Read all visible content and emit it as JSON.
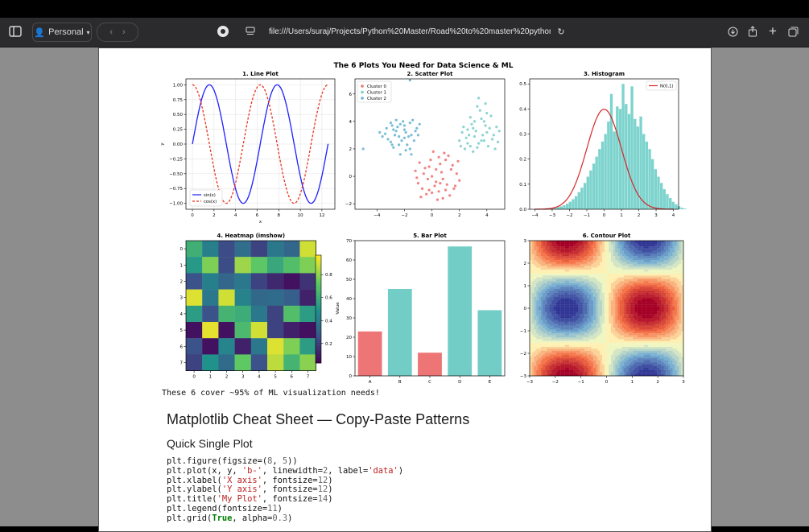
{
  "browser": {
    "profile_label": "Personal",
    "url": "file:///Users/suraj/Projects/Python%20Master/Road%20to%20master%20python/Py"
  },
  "figure": {
    "suptitle": "The 6 Plots You Need for Data Science & ML",
    "caption": "These 6 cover ~95% of ML visualization needs!"
  },
  "chart_data": [
    {
      "type": "line",
      "title": "1. Line Plot",
      "xlabel": "x",
      "ylabel": "y",
      "xlim": [
        -0.6,
        13.2
      ],
      "ylim": [
        -1.1,
        1.1
      ],
      "xticks": [
        "0",
        "2",
        "4",
        "6",
        "8",
        "10",
        "12"
      ],
      "yticks": [
        "1.00",
        "0.75",
        "0.50",
        "0.25",
        "0.00",
        "−0.25",
        "−0.50",
        "−0.75",
        "−1.00"
      ],
      "grid": true,
      "legend_position": "lower-left",
      "series": [
        {
          "name": "sin(x)",
          "function": "sin",
          "x_range": [
            0,
            12.57
          ],
          "color": "#1f1fff",
          "style": "solid"
        },
        {
          "name": "cos(x)",
          "function": "cos",
          "x_range": [
            0,
            12.57
          ],
          "color": "#e8341c",
          "style": "dashed"
        }
      ]
    },
    {
      "type": "scatter",
      "title": "2. Scatter Plot",
      "xlim": [
        -5.6,
        5.3
      ],
      "ylim": [
        -2.4,
        7.1
      ],
      "xticks": [
        "−4",
        "−2",
        "0",
        "2",
        "4"
      ],
      "yticks": [
        "6",
        "4",
        "2",
        "0",
        "−2"
      ],
      "legend_position": "top-left",
      "series": [
        {
          "name": "Cluster 0",
          "color": "#ee7775",
          "points": [
            [
              0.3,
              -0.4
            ],
            [
              -0.6,
              0.2
            ],
            [
              1.0,
              1.2
            ],
            [
              0.5,
              -1.1
            ],
            [
              -0.2,
              0.7
            ],
            [
              1.4,
              0.5
            ],
            [
              -1.0,
              -0.5
            ],
            [
              0.8,
              -0.2
            ],
            [
              0.1,
              1.8
            ],
            [
              1.6,
              -0.9
            ],
            [
              -0.4,
              -1.3
            ],
            [
              0.6,
              0.9
            ],
            [
              -1.2,
              0.4
            ],
            [
              1.1,
              -0.6
            ],
            [
              0.0,
              0.0
            ],
            [
              0.9,
              1.7
            ],
            [
              -0.7,
              -0.9
            ],
            [
              1.8,
              0.2
            ],
            [
              0.4,
              -1.7
            ],
            [
              -0.1,
              1.2
            ],
            [
              1.3,
              -1.4
            ],
            [
              0.7,
              0.3
            ],
            [
              -0.9,
              1.0
            ],
            [
              0.2,
              -0.7
            ],
            [
              1.9,
              1.1
            ],
            [
              -0.3,
              -0.2
            ],
            [
              1.0,
              -1.0
            ],
            [
              0.5,
              1.4
            ],
            [
              -0.8,
              -1.5
            ],
            [
              1.5,
              0.8
            ],
            [
              0.0,
              -1.2
            ],
            [
              2.0,
              -0.3
            ],
            [
              0.3,
              0.5
            ],
            [
              -1.1,
              -0.1
            ],
            [
              1.2,
              1.5
            ],
            [
              -0.5,
              0.6
            ],
            [
              0.8,
              -1.6
            ],
            [
              1.7,
              -0.7
            ],
            [
              -0.2,
              -1.0
            ],
            [
              0.6,
              -0.5
            ]
          ]
        },
        {
          "name": "Cluster 1",
          "color": "#7ecfca",
          "points": [
            [
              2.5,
              2.8
            ],
            [
              3.0,
              3.5
            ],
            [
              3.6,
              2.6
            ],
            [
              4.0,
              3.2
            ],
            [
              2.8,
              4.3
            ],
            [
              3.3,
              2.1
            ],
            [
              4.4,
              2.7
            ],
            [
              2.2,
              3.2
            ],
            [
              3.8,
              4.0
            ],
            [
              3.1,
              2.9
            ],
            [
              4.7,
              3.6
            ],
            [
              2.6,
              2.4
            ],
            [
              3.5,
              4.8
            ],
            [
              4.1,
              2.2
            ],
            [
              2.9,
              3.8
            ],
            [
              3.7,
              3.0
            ],
            [
              4.3,
              4.4
            ],
            [
              2.4,
              2.0
            ],
            [
              3.2,
              3.3
            ],
            [
              4.8,
              2.5
            ],
            [
              2.0,
              2.6
            ],
            [
              3.9,
              3.7
            ],
            [
              3.4,
              2.4
            ],
            [
              4.5,
              3.0
            ],
            [
              2.7,
              3.0
            ],
            [
              3.0,
              1.8
            ],
            [
              4.2,
              3.5
            ],
            [
              3.6,
              4.2
            ],
            [
              2.3,
              3.6
            ],
            [
              4.9,
              3.3
            ],
            [
              3.3,
              5.1
            ],
            [
              2.1,
              2.2
            ],
            [
              3.8,
              2.6
            ],
            [
              4.0,
              4.6
            ],
            [
              2.6,
              3.4
            ],
            [
              3.4,
              5.7
            ],
            [
              4.6,
              2.0
            ],
            [
              3.1,
              4.0
            ],
            [
              3.9,
              5.3
            ],
            [
              2.8,
              2.2
            ]
          ]
        },
        {
          "name": "Cluster 2",
          "color": "#6bb6d1",
          "points": [
            [
              -2.0,
              2.8
            ],
            [
              -2.6,
              3.3
            ],
            [
              -1.5,
              3.0
            ],
            [
              -3.0,
              2.5
            ],
            [
              -2.3,
              3.8
            ],
            [
              -1.1,
              3.5
            ],
            [
              -2.8,
              2.1
            ],
            [
              -1.8,
              2.3
            ],
            [
              -3.4,
              3.1
            ],
            [
              -2.1,
              4.0
            ],
            [
              -1.3,
              2.6
            ],
            [
              -2.9,
              3.7
            ],
            [
              -2.4,
              2.3
            ],
            [
              -1.6,
              3.9
            ],
            [
              -3.2,
              2.7
            ],
            [
              -2.0,
              3.4
            ],
            [
              -1.0,
              3.0
            ],
            [
              -2.7,
              3.0
            ],
            [
              -1.9,
              1.9
            ],
            [
              -3.6,
              2.9
            ],
            [
              -2.2,
              2.6
            ],
            [
              -1.4,
              4.1
            ],
            [
              -2.5,
              3.6
            ],
            [
              -3.0,
              3.9
            ],
            [
              -1.7,
              2.9
            ],
            [
              -2.9,
              2.3
            ],
            [
              -1.2,
              3.3
            ],
            [
              -2.3,
              1.6
            ],
            [
              -3.3,
              3.5
            ],
            [
              -2.0,
              3.7
            ],
            [
              -1.6,
              2.0
            ],
            [
              -2.6,
              4.1
            ],
            [
              -3.8,
              3.2
            ],
            [
              -1.9,
              3.2
            ],
            [
              -2.4,
              2.9
            ],
            [
              -0.9,
              3.8
            ],
            [
              -5.0,
              2.0
            ],
            [
              -2.8,
              3.4
            ],
            [
              -1.5,
              1.6
            ],
            [
              -1.6,
              7.0
            ]
          ]
        }
      ]
    },
    {
      "type": "bar",
      "subtype": "histogram+density",
      "title": "3. Histogram",
      "xlim": [
        -4.3,
        4.3
      ],
      "ylim": [
        0,
        0.52
      ],
      "xticks": [
        "−4",
        "−3",
        "−2",
        "−1",
        "0",
        "1",
        "2",
        "3",
        "4"
      ],
      "yticks": [
        "0.5",
        "0.4",
        "0.3",
        "0.2",
        "0.1",
        "0.0"
      ],
      "legend_position": "top-right",
      "bin_width": 0.17,
      "bin_start": -3.4,
      "density": [
        0.002,
        0.0,
        0.003,
        0.006,
        0.009,
        0.012,
        0.016,
        0.022,
        0.03,
        0.04,
        0.052,
        0.068,
        0.086,
        0.105,
        0.13,
        0.155,
        0.182,
        0.21,
        0.24,
        0.27,
        0.3,
        0.35,
        0.46,
        0.31,
        0.41,
        0.4,
        0.5,
        0.42,
        0.38,
        0.49,
        0.36,
        0.33,
        0.37,
        0.3,
        0.27,
        0.24,
        0.2,
        0.16,
        0.13,
        0.105,
        0.08,
        0.06,
        0.045,
        0.03,
        0.02,
        0.012,
        0.006,
        0.003
      ],
      "series": [
        {
          "name": "N(0,1)",
          "color": "#d62728",
          "style": "solid"
        }
      ],
      "bar_color": "#7dd3cd"
    },
    {
      "type": "heatmap",
      "title": "4. Heatmap (imshow)",
      "xticks": [
        "0",
        "1",
        "2",
        "3",
        "4",
        "5",
        "6",
        "7"
      ],
      "yticks": [
        "0",
        "1",
        "2",
        "3",
        "4",
        "5",
        "6",
        "7"
      ],
      "colorbar_ticks": [
        "0.8",
        "0.6",
        "0.4",
        "0.2"
      ],
      "colormap": "viridis",
      "values": [
        [
          0.63,
          0.43,
          0.23,
          0.36,
          0.2,
          0.4,
          0.33,
          0.93
        ],
        [
          0.53,
          0.8,
          0.23,
          0.85,
          0.74,
          0.6,
          0.7,
          0.8
        ],
        [
          0.25,
          0.43,
          0.33,
          0.4,
          0.2,
          0.12,
          0.05,
          0.15
        ],
        [
          0.95,
          0.4,
          0.93,
          0.44,
          0.34,
          0.35,
          0.3,
          0.1
        ],
        [
          0.55,
          0.25,
          0.65,
          0.62,
          0.4,
          0.2,
          0.7,
          0.55
        ],
        [
          0.05,
          0.96,
          0.05,
          0.68,
          0.93,
          0.2,
          0.1,
          0.05
        ],
        [
          0.25,
          0.05,
          0.45,
          0.1,
          0.4,
          0.95,
          0.8,
          0.55
        ],
        [
          0.2,
          0.5,
          0.35,
          0.75,
          0.25,
          0.9,
          0.65,
          0.82
        ]
      ]
    },
    {
      "type": "bar",
      "title": "5. Bar Plot",
      "ylabel": "Value",
      "ylim": [
        0,
        70
      ],
      "yticks": [
        "70",
        "60",
        "50",
        "40",
        "30",
        "20",
        "10",
        "0"
      ],
      "categories": [
        "A",
        "B",
        "C",
        "D",
        "E"
      ],
      "values": [
        23,
        45,
        12,
        67,
        34
      ],
      "colors": [
        "#ee7575",
        "#72cdc6",
        "#ee7575",
        "#72cdc6",
        "#72cdc6"
      ]
    },
    {
      "type": "heatmap",
      "subtype": "contour",
      "title": "6. Contour Plot",
      "xlim": [
        -3,
        3
      ],
      "ylim": [
        -3,
        3
      ],
      "xticks": [
        "−3",
        "−2",
        "−1",
        "0",
        "1",
        "2",
        "3"
      ],
      "yticks": [
        "3",
        "2",
        "1",
        "0",
        "−1",
        "−2",
        "−3"
      ],
      "function": "sin(x)*cos(y)",
      "colormap": "RdYlBu"
    }
  ],
  "doc": {
    "heading": "Matplotlib Cheat Sheet — Copy-Paste Patterns",
    "subheading": "Quick Single Plot",
    "code_lines": [
      "plt.figure(figsize=(8, 5))",
      "plt.plot(x, y, 'b-', linewidth=2, label='data')",
      "plt.xlabel('X axis', fontsize=12)",
      "plt.ylabel('Y axis', fontsize=12)",
      "plt.title('My Plot', fontsize=14)",
      "plt.legend(fontsize=11)",
      "plt.grid(True, alpha=0.3)"
    ]
  }
}
